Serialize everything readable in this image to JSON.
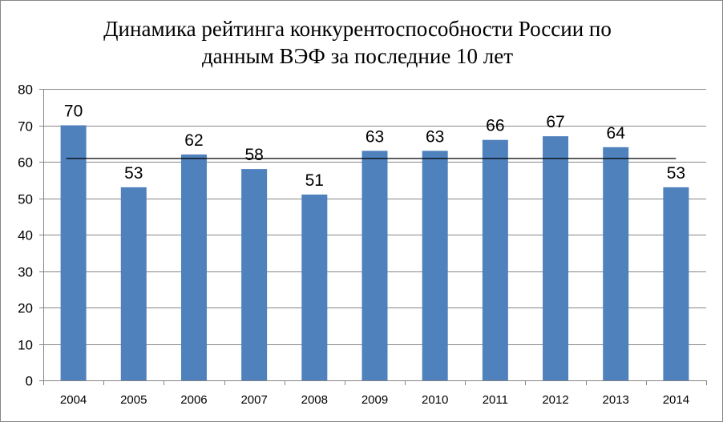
{
  "chart_data": {
    "type": "bar",
    "title_line1": "Динамика рейтинга конкурентоспособности России по",
    "title_line2": "данным ВЭФ за последние 10 лет",
    "categories": [
      "2004",
      "2005",
      "2006",
      "2007",
      "2008",
      "2009",
      "2010",
      "2011",
      "2012",
      "2013",
      "2014"
    ],
    "values": [
      70,
      53,
      62,
      58,
      51,
      63,
      63,
      66,
      67,
      64,
      53
    ],
    "data_labels": [
      "70",
      "53",
      "62",
      "58",
      "51",
      "63",
      "63",
      "66",
      "67",
      "64",
      "53"
    ],
    "ylim": [
      0,
      80
    ],
    "yticks": [
      "0",
      "10",
      "20",
      "30",
      "40",
      "50",
      "60",
      "70",
      "80"
    ],
    "grid": true,
    "legend": "none",
    "trend_line": {
      "type": "average",
      "value": 60.9
    },
    "xlabel": "",
    "ylabel": "",
    "colors": {
      "bar": "#4F81BD",
      "grid": "#868686",
      "trend": "#000000"
    }
  }
}
